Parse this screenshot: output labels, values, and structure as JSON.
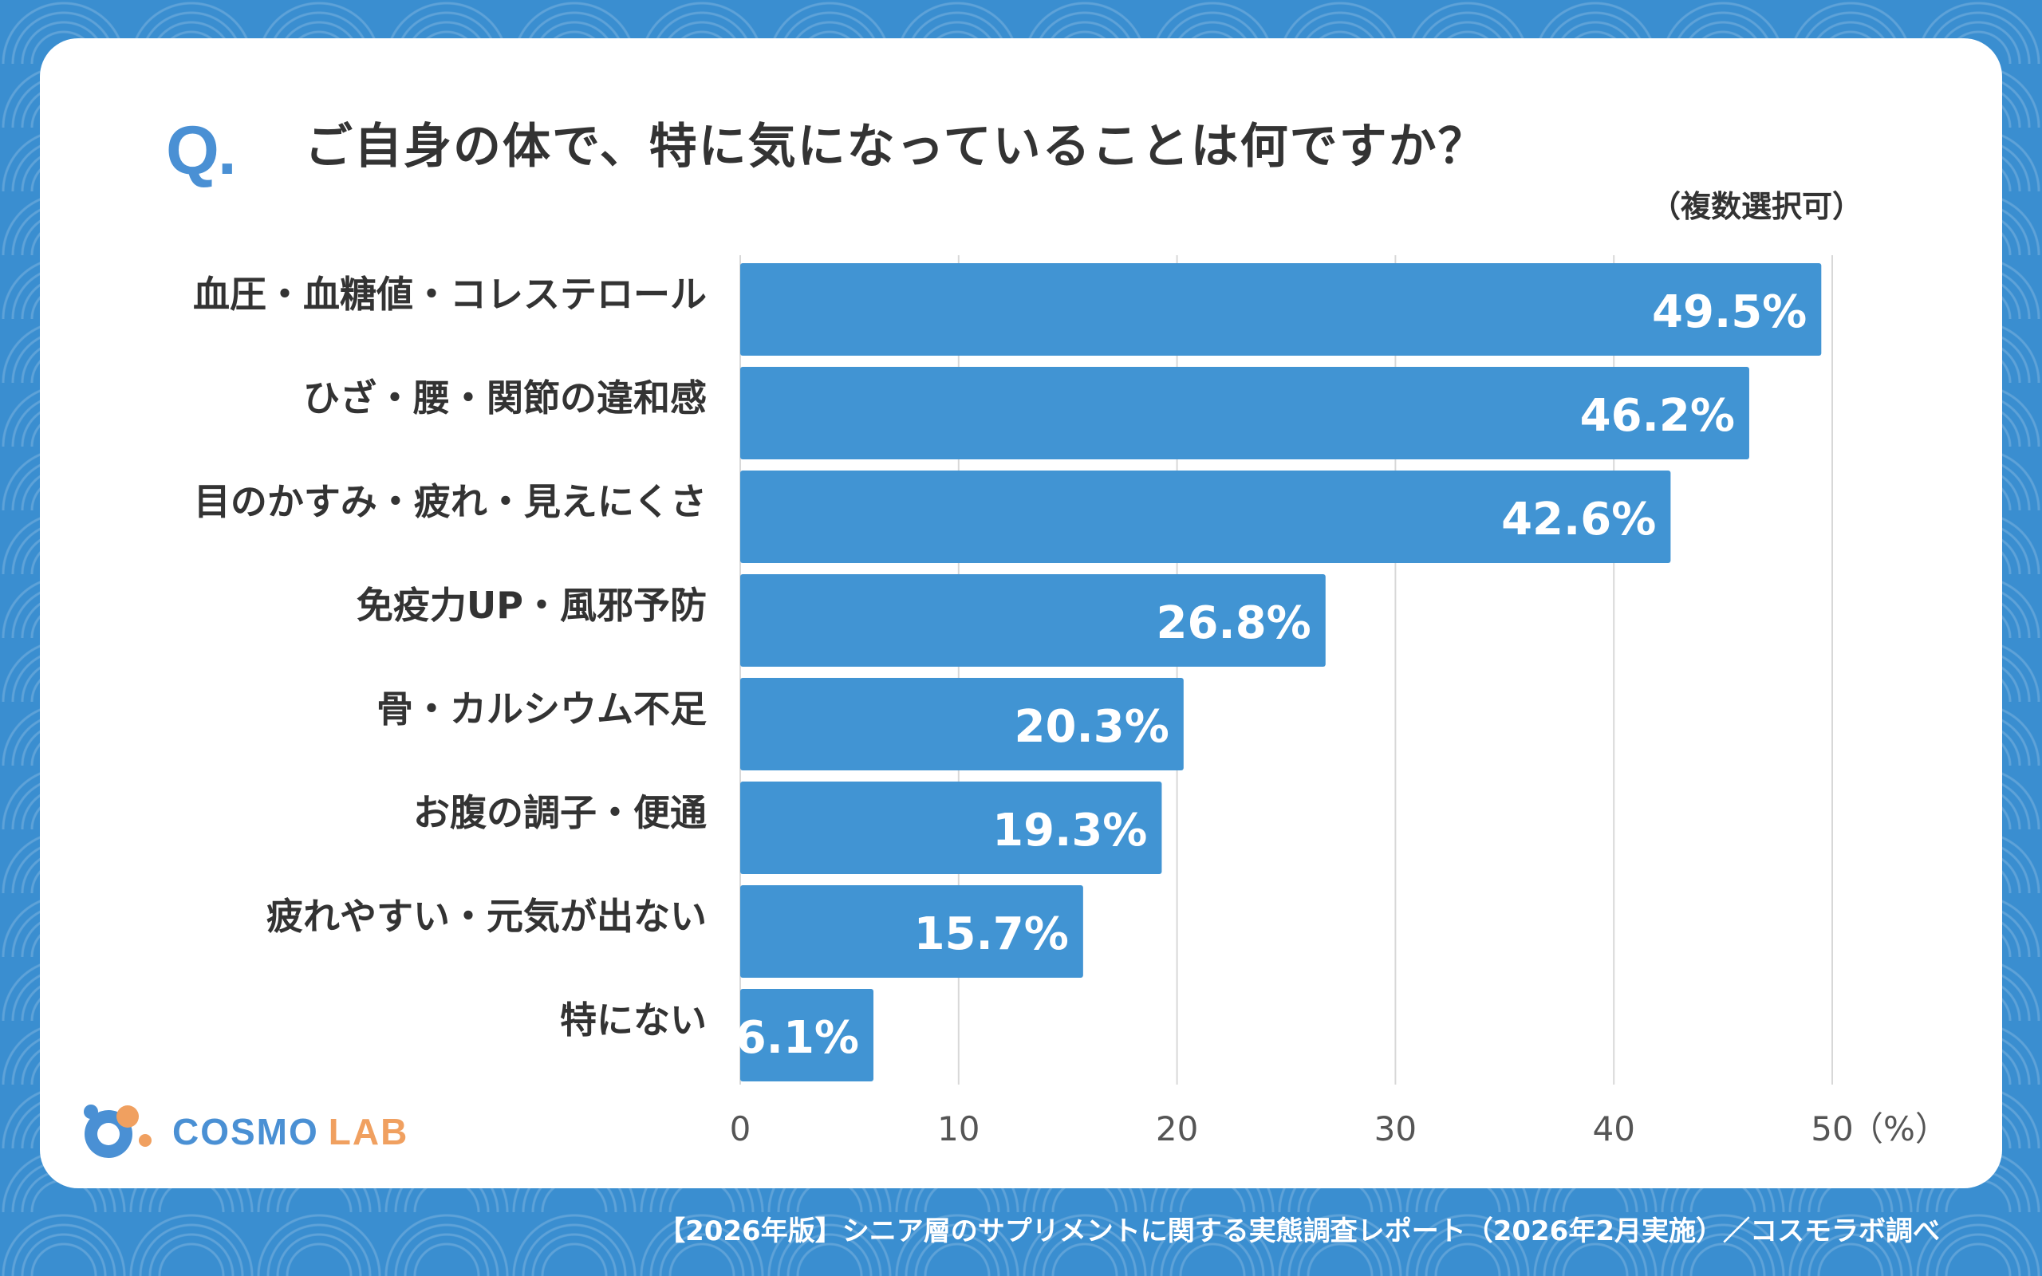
{
  "header": {
    "q_mark": "Q.",
    "question": "ご自身の体で、特に気になっていることは何ですか？",
    "note": "（複数選択可）"
  },
  "logo": {
    "word1": "COSMO",
    "word2": "LAB"
  },
  "footer": {
    "source": "【2026年版】シニア層のサプリメントに関する実態調査レポート（2026年2月実施）／コスモラボ調べ"
  },
  "colors": {
    "bar": "#4194d3",
    "accent": "#4a90d4",
    "background": "#3a8ed0"
  },
  "chart_data": {
    "type": "bar",
    "orientation": "horizontal",
    "categories": [
      "血圧・血糖値・コレステロール",
      "ひざ・腰・関節の違和感",
      "目のかすみ・疲れ・見えにくさ",
      "免疫力UP・風邪予防",
      "骨・カルシウム不足",
      "お腹の調子・便通",
      "疲れやすい・元気が出ない",
      "特にない"
    ],
    "values": [
      49.5,
      46.2,
      42.6,
      26.8,
      20.3,
      19.3,
      15.7,
      6.1
    ],
    "value_labels": [
      "49.5%",
      "46.2%",
      "42.6%",
      "26.8%",
      "20.3%",
      "19.3%",
      "15.7%",
      "6.1%"
    ],
    "xlim": [
      0,
      50
    ],
    "xticks": [
      "0",
      "10",
      "20",
      "30",
      "40",
      "50"
    ],
    "x_unit": "（%）",
    "grid": true
  }
}
